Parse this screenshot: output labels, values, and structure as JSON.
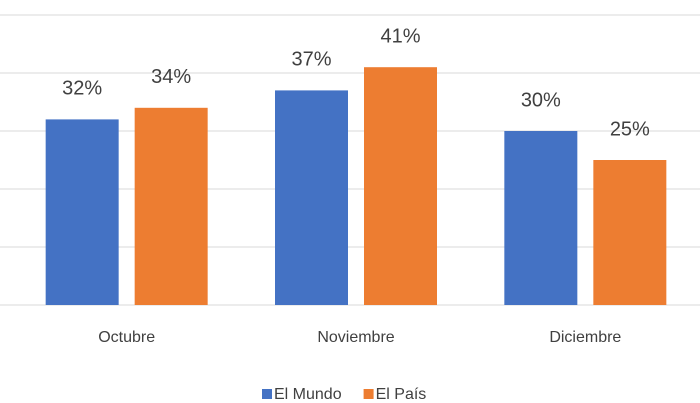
{
  "chart_data": {
    "type": "bar",
    "categories": [
      "Octubre",
      "Noviembre",
      "Diciembre"
    ],
    "series": [
      {
        "name": "El Mundo",
        "color": "#4472c4",
        "values": [
          32,
          37,
          30
        ],
        "value_labels": [
          "32%",
          "37%",
          "30%"
        ]
      },
      {
        "name": "El País",
        "color": "#ed7d31",
        "values": [
          34,
          41,
          25
        ],
        "value_labels": [
          "34%",
          "41%",
          "25%"
        ]
      }
    ],
    "ylim": [
      0,
      50
    ],
    "yticks": [
      0,
      10,
      20,
      30,
      40,
      50
    ],
    "grid": true,
    "legend": "bottom"
  }
}
